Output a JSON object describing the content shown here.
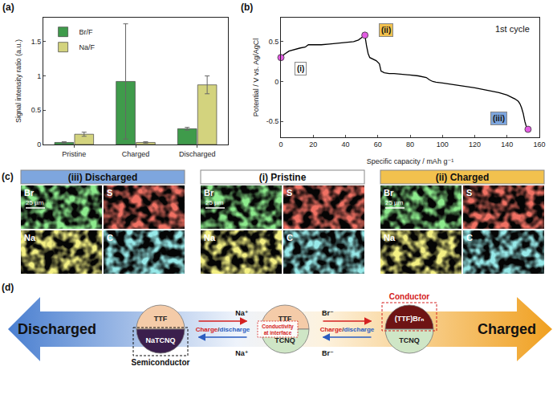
{
  "chart_data": [
    {
      "type": "bar",
      "panel_label": "(a)",
      "y_label": "Signal intensity ratio (a.u.)",
      "categories": [
        "Pristine",
        "Charged",
        "Discharged"
      ],
      "series": [
        {
          "name": "Br/F",
          "color": "#3f9b4b",
          "values": [
            0.03,
            0.92,
            0.23
          ],
          "errors": [
            0.01,
            0.84,
            0.02
          ]
        },
        {
          "name": "Na/F",
          "color": "#d3d37e",
          "values": [
            0.15,
            0.03,
            0.87
          ],
          "errors": [
            0.03,
            0.01,
            0.13
          ]
        }
      ],
      "ylim": [
        0,
        1.85
      ],
      "yticks": [
        0,
        0.5,
        1,
        1.5
      ],
      "legend": "upper left",
      "grid": false
    },
    {
      "type": "line",
      "panel_label": "(b)",
      "x_label": "Specific capacity / mAh g⁻¹",
      "y_label": "Potential / V vs. Ag/AgCl",
      "annotation": "1st cycle",
      "series": [
        {
          "type": "line",
          "color": "#000000",
          "x": [
            0,
            2,
            5,
            8,
            12,
            15,
            17,
            20,
            25,
            30,
            35,
            40,
            45,
            48,
            50,
            52,
            53,
            54,
            55,
            57,
            59,
            61,
            62,
            64,
            67,
            70,
            75,
            80,
            85,
            90,
            92,
            94,
            96,
            100,
            110,
            120,
            130,
            135,
            140,
            143,
            145,
            147,
            148,
            149,
            150,
            151,
            152,
            153
          ],
          "values": [
            0.3,
            0.34,
            0.38,
            0.4,
            0.42,
            0.43,
            0.46,
            0.46,
            0.46,
            0.47,
            0.48,
            0.49,
            0.5,
            0.52,
            0.55,
            0.58,
            0.45,
            0.35,
            0.3,
            0.28,
            0.26,
            0.22,
            0.13,
            0.11,
            0.1,
            0.1,
            0.09,
            0.08,
            0.07,
            0.05,
            0.02,
            0.0,
            -0.01,
            -0.02,
            -0.05,
            -0.08,
            -0.12,
            -0.14,
            -0.17,
            -0.2,
            -0.22,
            -0.25,
            -0.28,
            -0.33,
            -0.4,
            -0.5,
            -0.57,
            -0.6
          ]
        },
        {
          "type": "scatter",
          "marker": "circle",
          "color": "#e35ce3",
          "x": [
            0,
            52,
            153
          ],
          "values": [
            0.3,
            0.58,
            -0.6
          ],
          "labels": [
            "(i)",
            "(ii)",
            "(iii)"
          ],
          "label_colors": [
            "#ffffff",
            "#f2c14e",
            "#7ea6de"
          ]
        }
      ],
      "xlim": [
        0,
        160
      ],
      "xticks": [
        0,
        20,
        40,
        60,
        80,
        100,
        120,
        140,
        160
      ],
      "ylim": [
        -0.7,
        0.8
      ],
      "yticks": [
        -0.5,
        0,
        0.5
      ],
      "grid": false
    }
  ],
  "maps": {
    "panel_label": "(c)",
    "scale_bar": "25 µm",
    "groups": [
      {
        "title": "(iii) Discharged",
        "color": "#7ea6de"
      },
      {
        "title": "(i) Pristine",
        "color": "#ffffff"
      },
      {
        "title": "(ii) Charged",
        "color": "#f2c14e"
      }
    ],
    "elements": [
      {
        "label": "Br",
        "color": "#44d444"
      },
      {
        "label": "S",
        "color": "#e02a20"
      },
      {
        "label": "Na",
        "color": "#e6df3a"
      },
      {
        "label": "C",
        "color": "#4fd0d0"
      }
    ]
  },
  "diagram": {
    "panel_label": "(d)",
    "left_label": "Discharged",
    "right_label": "Charged",
    "states": [
      {
        "top": "TTF",
        "bottom": "NaTCNQ",
        "note": "Semiconductor"
      },
      {
        "top": "TTF",
        "bottom": "TCNQ",
        "note": "Conductivity at interface"
      },
      {
        "top": "(TTF)Brₙ",
        "bottom": "TCNQ",
        "note": "Conductor"
      }
    ],
    "transitions": [
      {
        "ion_top": "Na⁺",
        "ion_bottom": "Na⁺",
        "forward": "Charge",
        "separator": "/",
        "backward": "discharge"
      },
      {
        "ion_top": "Br⁻",
        "ion_bottom": "Br⁻",
        "forward": "Charge",
        "separator": "/",
        "backward": "discharge"
      }
    ]
  }
}
